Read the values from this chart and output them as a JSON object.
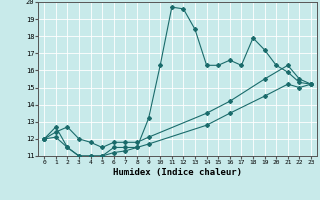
{
  "xlabel": "Humidex (Indice chaleur)",
  "bg_color": "#c8eaea",
  "grid_color": "#ffffff",
  "line_color": "#1a6b6b",
  "xlim": [
    -0.5,
    23.5
  ],
  "ylim": [
    11,
    20
  ],
  "xticks": [
    0,
    1,
    2,
    3,
    4,
    5,
    6,
    7,
    8,
    9,
    10,
    11,
    12,
    13,
    14,
    15,
    16,
    17,
    18,
    19,
    20,
    21,
    22,
    23
  ],
  "yticks": [
    11,
    12,
    13,
    14,
    15,
    16,
    17,
    18,
    19,
    20
  ],
  "line1_x": [
    0,
    1,
    2,
    3,
    4,
    5,
    6,
    7,
    8,
    9,
    10,
    11,
    12,
    13,
    14,
    15,
    16,
    17,
    18,
    19,
    20,
    21,
    22,
    23
  ],
  "line1_y": [
    12.0,
    12.7,
    11.5,
    11.0,
    11.0,
    11.0,
    11.5,
    11.5,
    11.5,
    13.2,
    16.3,
    19.7,
    19.6,
    18.4,
    16.3,
    16.3,
    16.6,
    16.3,
    17.9,
    17.2,
    16.3,
    15.9,
    15.3,
    15.2
  ],
  "line2_x": [
    0,
    1,
    2,
    3,
    4,
    5,
    6,
    7,
    8,
    9,
    14,
    16,
    19,
    21,
    22,
    23
  ],
  "line2_y": [
    12.0,
    12.4,
    12.7,
    12.0,
    11.8,
    11.5,
    11.8,
    11.8,
    11.8,
    12.1,
    13.5,
    14.2,
    15.5,
    16.3,
    15.5,
    15.2
  ],
  "line3_x": [
    0,
    1,
    2,
    3,
    4,
    5,
    6,
    7,
    8,
    9,
    14,
    16,
    19,
    21,
    22,
    23
  ],
  "line3_y": [
    12.0,
    12.1,
    11.5,
    11.0,
    11.0,
    11.0,
    11.2,
    11.3,
    11.5,
    11.7,
    12.8,
    13.5,
    14.5,
    15.2,
    15.0,
    15.2
  ]
}
